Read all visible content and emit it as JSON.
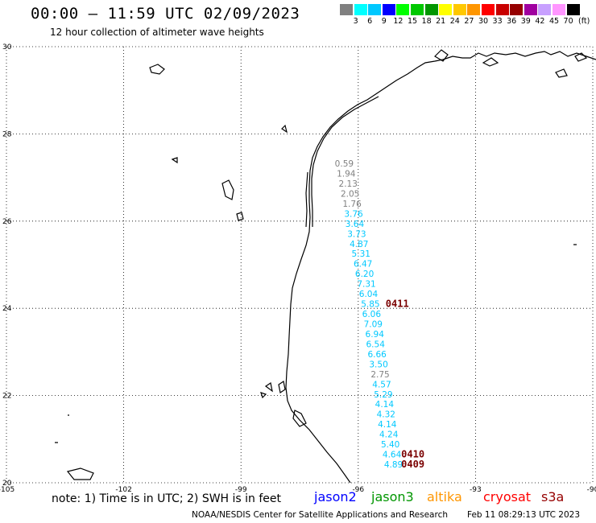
{
  "header": {
    "title": "00:00 — 11:59 UTC 02/09/2023",
    "subtitle": "12 hour collection of altimeter wave heights"
  },
  "legend": {
    "unit": "(ft)",
    "bins": [
      {
        "label": "3",
        "color": "#808080"
      },
      {
        "label": "6",
        "color": "#00ffff"
      },
      {
        "label": "9",
        "color": "#00c8ff"
      },
      {
        "label": "12",
        "color": "#0000ff"
      },
      {
        "label": "15",
        "color": "#00ff00"
      },
      {
        "label": "18",
        "color": "#00c800"
      },
      {
        "label": "21",
        "color": "#009600"
      },
      {
        "label": "24",
        "color": "#ffff00"
      },
      {
        "label": "27",
        "color": "#ffc800"
      },
      {
        "label": "30",
        "color": "#ff9600"
      },
      {
        "label": "33",
        "color": "#ff0000"
      },
      {
        "label": "36",
        "color": "#c80000"
      },
      {
        "label": "39",
        "color": "#960000"
      },
      {
        "label": "42",
        "color": "#a000a0"
      },
      {
        "label": "45",
        "color": "#c8a0ff"
      },
      {
        "label": "70",
        "color": "#ff96ff"
      },
      {
        "label": "",
        "color": "#000000"
      }
    ]
  },
  "map": {
    "lon_ticks": [
      "-105",
      "-102",
      "-99",
      "-96",
      "-93",
      "-90"
    ],
    "lat_ticks": [
      "30",
      "28",
      "26",
      "24",
      "22",
      "20"
    ],
    "lon_range": [
      -105,
      -90
    ],
    "lat_range": [
      20,
      30
    ],
    "grid": "dotted"
  },
  "wave_heights": [
    {
      "text": "0.59",
      "lat": 27.25,
      "lon": -96.6,
      "color": "#808080"
    },
    {
      "text": "1.94",
      "lat": 27.02,
      "lon": -96.55,
      "color": "#808080"
    },
    {
      "text": "2.13",
      "lat": 26.79,
      "lon": -96.5,
      "color": "#808080"
    },
    {
      "text": "2.05",
      "lat": 26.56,
      "lon": -96.45,
      "color": "#808080"
    },
    {
      "text": "1.76",
      "lat": 26.33,
      "lon": -96.4,
      "color": "#808080"
    },
    {
      "text": "3.76",
      "lat": 26.1,
      "lon": -96.36,
      "color": "#00c8ff"
    },
    {
      "text": "3.64",
      "lat": 25.87,
      "lon": -96.33,
      "color": "#00c8ff"
    },
    {
      "text": "3.73",
      "lat": 25.64,
      "lon": -96.28,
      "color": "#00c8ff"
    },
    {
      "text": "4.87",
      "lat": 25.41,
      "lon": -96.22,
      "color": "#00c8ff"
    },
    {
      "text": "5.31",
      "lat": 25.18,
      "lon": -96.17,
      "color": "#00c8ff"
    },
    {
      "text": "6.47",
      "lat": 24.95,
      "lon": -96.12,
      "color": "#00c8ff"
    },
    {
      "text": "6.20",
      "lat": 24.72,
      "lon": -96.08,
      "color": "#00c8ff"
    },
    {
      "text": "7.31",
      "lat": 24.49,
      "lon": -96.03,
      "color": "#00c8ff"
    },
    {
      "text": "6.04",
      "lat": 24.26,
      "lon": -95.98,
      "color": "#00c8ff"
    },
    {
      "text": "5.85",
      "lat": 24.03,
      "lon": -95.93,
      "color": "#00c8ff"
    },
    {
      "text": "6.06",
      "lat": 23.8,
      "lon": -95.9,
      "color": "#00c8ff"
    },
    {
      "text": "7.09",
      "lat": 23.57,
      "lon": -95.86,
      "color": "#00c8ff"
    },
    {
      "text": "6.94",
      "lat": 23.34,
      "lon": -95.82,
      "color": "#00c8ff"
    },
    {
      "text": "6.54",
      "lat": 23.11,
      "lon": -95.8,
      "color": "#00c8ff"
    },
    {
      "text": "6.66",
      "lat": 22.88,
      "lon": -95.76,
      "color": "#00c8ff"
    },
    {
      "text": "3.50",
      "lat": 22.65,
      "lon": -95.72,
      "color": "#00c8ff"
    },
    {
      "text": "2.75",
      "lat": 22.42,
      "lon": -95.68,
      "color": "#808080"
    },
    {
      "text": "4.57",
      "lat": 22.19,
      "lon": -95.64,
      "color": "#00c8ff"
    },
    {
      "text": "5.29",
      "lat": 21.96,
      "lon": -95.6,
      "color": "#00c8ff"
    },
    {
      "text": "4.14",
      "lat": 21.73,
      "lon": -95.57,
      "color": "#00c8ff"
    },
    {
      "text": "4.32",
      "lat": 21.5,
      "lon": -95.53,
      "color": "#00c8ff"
    },
    {
      "text": "4.14",
      "lat": 21.27,
      "lon": -95.5,
      "color": "#00c8ff"
    },
    {
      "text": "4.24",
      "lat": 21.04,
      "lon": -95.46,
      "color": "#00c8ff"
    },
    {
      "text": "5.40",
      "lat": 20.81,
      "lon": -95.42,
      "color": "#00c8ff"
    },
    {
      "text": "4.64",
      "lat": 20.58,
      "lon": -95.38,
      "color": "#00c8ff"
    },
    {
      "text": "4.89",
      "lat": 20.35,
      "lon": -95.34,
      "color": "#00c8ff"
    }
  ],
  "pass_labels": [
    {
      "text": "0411",
      "lat": 24.03,
      "lon": -95.3
    },
    {
      "text": "0410",
      "lat": 20.58,
      "lon": -94.9
    },
    {
      "text": "0409",
      "lat": 20.35,
      "lon": -94.9
    }
  ],
  "footer": {
    "note": "note: 1) Time is in UTC; 2) SWH is in feet",
    "satellites": [
      {
        "name": "jason2",
        "color": "#0000ff"
      },
      {
        "name": "jason3",
        "color": "#009600"
      },
      {
        "name": "altika",
        "color": "#ff9600"
      },
      {
        "name": "cryosat",
        "color": "#ff0000"
      },
      {
        "name": "s3a",
        "color": "#960000"
      }
    ],
    "credit": "NOAA/NESDIS Center for Satellite Applications and Research",
    "timestamp": "Feb 11 08:29:13 UTC 2023"
  }
}
